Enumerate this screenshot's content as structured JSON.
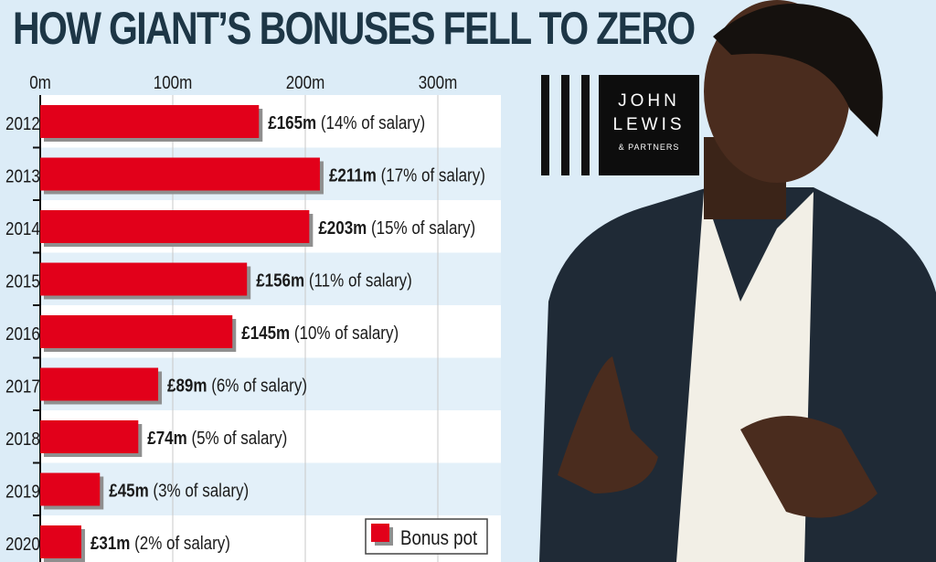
{
  "chart_data": {
    "type": "bar",
    "orientation": "horizontal",
    "title": "HOW GIANT’S BONUSES FELL TO ZERO",
    "categories": [
      "2012",
      "2013",
      "2014",
      "2015",
      "2016",
      "2017",
      "2018",
      "2019",
      "2020"
    ],
    "series": [
      {
        "name": "Bonus pot",
        "values": [
          165,
          211,
          203,
          156,
          145,
          89,
          74,
          45,
          31
        ],
        "color": "#e2001a"
      }
    ],
    "data_labels": [
      {
        "amount": "£165m",
        "note": "(14% of salary)"
      },
      {
        "amount": "£211m",
        "note": "(17% of salary)"
      },
      {
        "amount": "£203m",
        "note": "(15% of salary)"
      },
      {
        "amount": "£156m",
        "note": "(11% of salary)"
      },
      {
        "amount": "£145m",
        "note": "(10% of salary)"
      },
      {
        "amount": "£89m",
        "note": "(6% of salary)"
      },
      {
        "amount": "£74m",
        "note": "(5% of salary)"
      },
      {
        "amount": "£45m",
        "note": "(3% of salary)"
      },
      {
        "amount": "£31m",
        "note": "(2% of salary)"
      }
    ],
    "xticks": [
      0,
      100,
      200,
      300
    ],
    "xtick_labels": [
      "0m",
      "100m",
      "200m",
      "300m"
    ],
    "xlim": [
      0,
      300
    ],
    "grid": true,
    "legend": "bottom-right"
  },
  "logo": {
    "line1": "JOHN",
    "line2": "LEWIS",
    "line3": "& PARTNERS"
  },
  "colors": {
    "background": "#dcecf7",
    "bar": "#e2001a",
    "title": "#1d3646"
  }
}
